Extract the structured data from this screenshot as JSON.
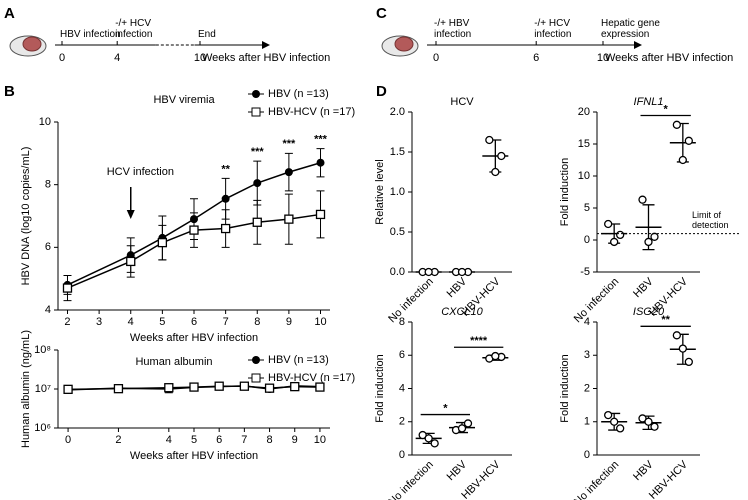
{
  "panel_labels": [
    "A",
    "B",
    "C",
    "D"
  ],
  "timelines": [
    {
      "events": [
        "HBV infection",
        "-/+ HCV infection",
        "End"
      ],
      "ticks": [
        0,
        4,
        10
      ],
      "axis_label": "Weeks after HBV infection"
    },
    {
      "events": [
        "-/+ HBV infection",
        "-/+ HCV infection",
        "Hepatic gene expression"
      ],
      "ticks": [
        0,
        6,
        10
      ],
      "axis_label": "Weeks after HBV infection"
    }
  ],
  "chart_data": [
    {
      "type": "line",
      "title": "HBV viremia",
      "x": [
        2,
        4,
        5,
        6,
        7,
        8,
        9,
        10
      ],
      "xlim": [
        1.7,
        10.3
      ],
      "xticks": [
        2,
        3,
        4,
        5,
        6,
        7,
        8,
        9,
        10
      ],
      "ylim": [
        4,
        10
      ],
      "yticks": [
        4,
        6,
        8,
        10
      ],
      "xlabel": "Weeks after HBV infection",
      "ylabel": "HBV DNA (log10 copies/mL)",
      "legend": "upper right",
      "series": [
        {
          "name": "HBV (n =13)",
          "marker": "circle",
          "color": "#000000",
          "values": [
            4.8,
            5.75,
            6.3,
            6.9,
            7.55,
            8.05,
            8.4,
            8.7
          ],
          "errors": [
            0.3,
            0.55,
            0.7,
            0.65,
            0.65,
            0.7,
            0.6,
            0.45
          ]
        },
        {
          "name": "HBV-HCV (n =17)",
          "marker": "square",
          "color": "#000000",
          "values": [
            4.7,
            5.55,
            6.15,
            6.55,
            6.6,
            6.8,
            6.9,
            7.05
          ],
          "errors": [
            0.4,
            0.5,
            0.55,
            0.55,
            0.6,
            0.7,
            0.8,
            0.75
          ]
        }
      ],
      "annotation": {
        "text": "HCV infection",
        "x": 4
      },
      "significance": [
        {
          "x": 7,
          "label": "**"
        },
        {
          "x": 8,
          "label": "***"
        },
        {
          "x": 9,
          "label": "***"
        },
        {
          "x": 10,
          "label": "***"
        }
      ]
    },
    {
      "type": "line",
      "title": "Human albumin",
      "x": [
        0,
        2,
        4,
        5,
        6,
        7,
        8,
        9,
        10
      ],
      "xlim": [
        -0.4,
        10.4
      ],
      "xticks": [
        0,
        2,
        4,
        5,
        6,
        7,
        8,
        9,
        10
      ],
      "ylim": [
        1000000,
        100000000
      ],
      "log_scale": true,
      "yticks": [
        {
          "value": 1000000,
          "label": "10⁶"
        },
        {
          "value": 10000000,
          "label": "10⁷"
        },
        {
          "value": 100000000,
          "label": "10⁸"
        }
      ],
      "xlabel": "Weeks after HBV infection",
      "ylabel": "Human albumin (ng/mL)",
      "legend": "right",
      "series": [
        {
          "name": "HBV (n =13)",
          "marker": "circle",
          "color": "#000000",
          "values": [
            9500000,
            10500000,
            10000000,
            11000000,
            11500000,
            12000000,
            10000000,
            12000000,
            11500000
          ],
          "errors": [
            1500000,
            1000000,
            2000000,
            800000,
            1000000,
            800000,
            1000000,
            1000000,
            800000
          ]
        },
        {
          "name": "HBV-HCV (n =17)",
          "marker": "square",
          "color": "#000000",
          "values": [
            9800000,
            10200000,
            10800000,
            11200000,
            11800000,
            11800000,
            10500000,
            11500000,
            11200000
          ],
          "errors": [
            1200000,
            800000,
            1200000,
            800000,
            900000,
            800000,
            900000,
            900000,
            800000
          ]
        }
      ]
    },
    {
      "type": "dot",
      "title": "HCV",
      "title_style": "normal",
      "categories": [
        "No infection",
        "HBV",
        "HBV-HCV"
      ],
      "ylabel": "Relative level",
      "ylim": [
        0,
        2
      ],
      "yticks": [
        {
          "value": 0,
          "label": "0.0"
        },
        0.5,
        {
          "value": 1,
          "label": "1.0"
        },
        1.5,
        {
          "value": 2,
          "label": "2.0"
        }
      ],
      "points": [
        [
          0,
          0,
          0
        ],
        [
          0,
          0,
          0
        ],
        [
          1.65,
          1.45,
          1.25
        ]
      ],
      "means": [
        0,
        0,
        1.45
      ],
      "sd": [
        0,
        0,
        0.2
      ]
    },
    {
      "type": "dot",
      "title": "IFNL1",
      "title_style": "italic",
      "categories": [
        "No infection",
        "HBV",
        "HBV-HCV"
      ],
      "ylabel": "Fold induction",
      "ylim": [
        -5,
        20
      ],
      "yticks": [
        -5,
        0,
        5,
        10,
        15,
        20
      ],
      "points": [
        [
          2.5,
          0.8,
          -0.3
        ],
        [
          6.3,
          0.5,
          -0.3
        ],
        [
          18,
          15.5,
          12.5
        ]
      ],
      "means": [
        1,
        2,
        15.2
      ],
      "sd": [
        1.5,
        3.5,
        3
      ],
      "limit_line": {
        "text": "Limit of detection",
        "value": 1
      },
      "significance": [
        {
          "between": [
            "HBV",
            "HBV-HCV"
          ],
          "label": "*"
        }
      ]
    },
    {
      "type": "dot",
      "title": "CXCL10",
      "title_style": "italic",
      "categories": [
        "No infection",
        "HBV",
        "HBV-HCV"
      ],
      "ylabel": "Fold induction",
      "ylim": [
        0,
        8
      ],
      "yticks": [
        0,
        2,
        4,
        6,
        8
      ],
      "points": [
        [
          1.2,
          0.7,
          1.0
        ],
        [
          1.5,
          1.9,
          1.6
        ],
        [
          5.8,
          5.9,
          5.95
        ]
      ],
      "means": [
        1,
        1.65,
        5.85
      ],
      "sd": [
        0.3,
        0.3,
        0.15
      ],
      "significance": [
        {
          "between": [
            "No infection",
            "HBV"
          ],
          "label": "*"
        },
        {
          "between": [
            "HBV",
            "HBV-HCV"
          ],
          "label": "****"
        }
      ]
    },
    {
      "type": "dot",
      "title": "ISG20",
      "title_style": "italic",
      "categories": [
        "No infection",
        "HBV",
        "HBV-HCV"
      ],
      "ylabel": "Fold induction",
      "ylim": [
        0,
        4
      ],
      "yticks": [
        0,
        1,
        2,
        3,
        4
      ],
      "points": [
        [
          1.2,
          0.8,
          1.0
        ],
        [
          1.1,
          0.85,
          1.0
        ],
        [
          3.6,
          2.8,
          3.2
        ]
      ],
      "means": [
        1,
        0.97,
        3.18
      ],
      "sd": [
        0.25,
        0.2,
        0.45
      ],
      "significance": [
        {
          "between": [
            "HBV",
            "HBV-HCV"
          ],
          "label": "**"
        }
      ]
    }
  ]
}
